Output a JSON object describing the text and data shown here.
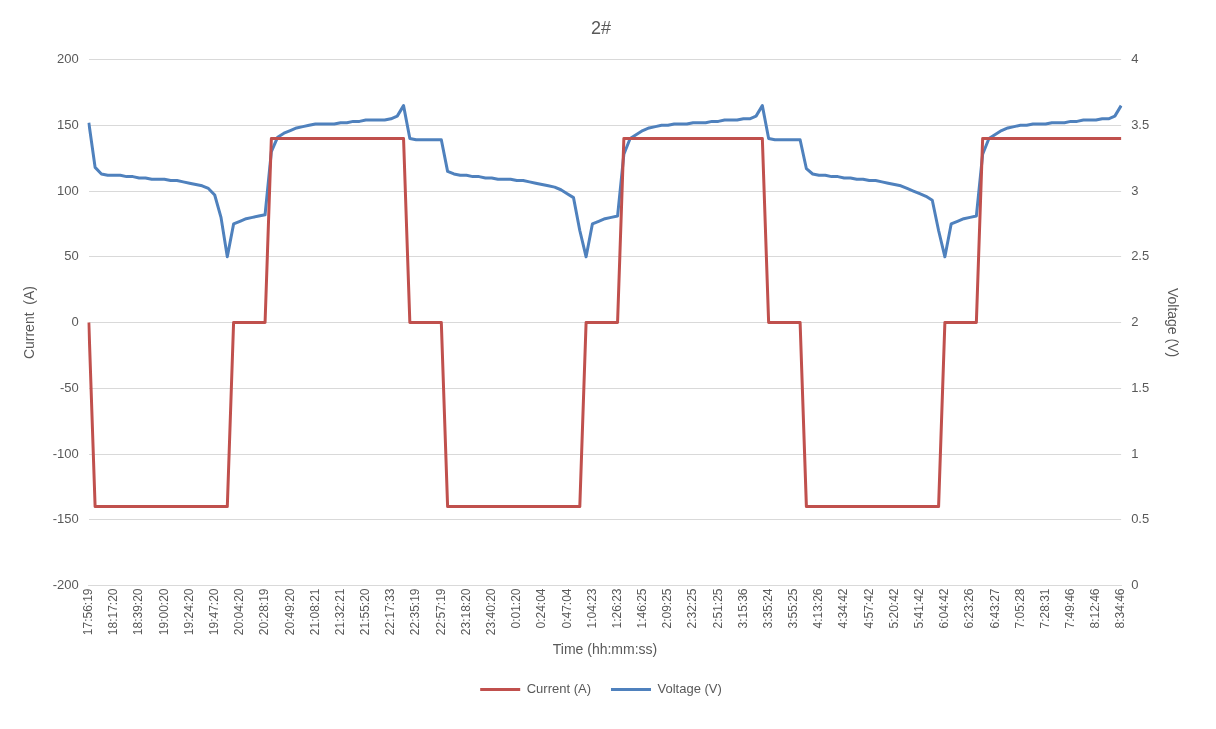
{
  "chart_data": {
    "type": "line",
    "title": "2#",
    "xlabel": "Time (hh:mm:ss)",
    "ylabel": "Current  (A)",
    "y2label": "Voltage (V)",
    "categories": [
      "17:56:19",
      null,
      null,
      null,
      "18:17:20",
      null,
      null,
      null,
      "18:39:20",
      null,
      null,
      null,
      "19:00:20",
      null,
      null,
      null,
      "19:24:20",
      null,
      null,
      null,
      "19:47:20",
      null,
      null,
      null,
      "20:04:20",
      null,
      null,
      null,
      "20:28:19",
      null,
      null,
      null,
      "20:49:20",
      null,
      null,
      null,
      "21:08:21",
      null,
      null,
      null,
      "21:32:21",
      null,
      null,
      null,
      "21:55:20",
      null,
      null,
      null,
      "22:17:33",
      null,
      null,
      null,
      "22:35:19",
      null,
      null,
      null,
      "22:57:19",
      null,
      null,
      null,
      "23:18:20",
      null,
      null,
      null,
      "23:40:20",
      null,
      null,
      null,
      "0:01:20",
      null,
      null,
      null,
      "0:24:04",
      null,
      null,
      null,
      "0:47:04",
      null,
      null,
      null,
      "1:04:23",
      null,
      null,
      null,
      "1:26:23",
      null,
      null,
      null,
      "1:46:25",
      null,
      null,
      null,
      "2:09:25",
      null,
      null,
      null,
      "2:32:25",
      null,
      null,
      null,
      "2:51:25",
      null,
      null,
      null,
      "3:15:36",
      null,
      null,
      null,
      "3:35:24",
      null,
      null,
      null,
      "3:55:25",
      null,
      null,
      null,
      "4:13:26",
      null,
      null,
      null,
      "4:34:42",
      null,
      null,
      null,
      "4:57:42",
      null,
      null,
      null,
      "5:20:42",
      null,
      null,
      null,
      "5:41:42",
      null,
      null,
      null,
      "6:04:42",
      null,
      null,
      null,
      "6:23:26",
      null,
      null,
      null,
      "6:43:27",
      null,
      null,
      null,
      "7:05:28",
      null,
      null,
      null,
      "7:28:31",
      null,
      null,
      null,
      "7:49:46",
      null,
      null,
      null,
      "8:12:46",
      null,
      null,
      null,
      "8:34:46"
    ],
    "series": [
      {
        "name": "Current (A)",
        "color": "#c0504d",
        "values": [
          0,
          -140,
          -140,
          -140,
          -140,
          -140,
          -140,
          -140,
          -140,
          -140,
          -140,
          -140,
          -140,
          -140,
          -140,
          -140,
          -140,
          -140,
          -140,
          -140,
          -140,
          -140,
          -140,
          0,
          0,
          0,
          0,
          0,
          0,
          140,
          140,
          140,
          140,
          140,
          140,
          140,
          140,
          140,
          140,
          140,
          140,
          140,
          140,
          140,
          140,
          140,
          140,
          140,
          140,
          140,
          140,
          0,
          0,
          0,
          0,
          0,
          0,
          -140,
          -140,
          -140,
          -140,
          -140,
          -140,
          -140,
          -140,
          -140,
          -140,
          -140,
          -140,
          -140,
          -140,
          -140,
          -140,
          -140,
          -140,
          -140,
          -140,
          -140,
          -140,
          0,
          0,
          0,
          0,
          0,
          0,
          140,
          140,
          140,
          140,
          140,
          140,
          140,
          140,
          140,
          140,
          140,
          140,
          140,
          140,
          140,
          140,
          140,
          140,
          140,
          140,
          140,
          140,
          140,
          0,
          0,
          0,
          0,
          0,
          0,
          -140,
          -140,
          -140,
          -140,
          -140,
          -140,
          -140,
          -140,
          -140,
          -140,
          -140,
          -140,
          -140,
          -140,
          -140,
          -140,
          -140,
          -140,
          -140,
          -140,
          -140,
          -140,
          0,
          0,
          0,
          0,
          0,
          0,
          140,
          140,
          140,
          140,
          140,
          140,
          140,
          140,
          140,
          140,
          140,
          140,
          140,
          140,
          140,
          140,
          140,
          140,
          140,
          140,
          140,
          140,
          140
        ]
      },
      {
        "name": "Voltage (V)",
        "color": "#4f81bd",
        "axis": "y2",
        "values": [
          3.52,
          3.18,
          3.13,
          3.12,
          3.12,
          3.12,
          3.11,
          3.11,
          3.1,
          3.1,
          3.09,
          3.09,
          3.09,
          3.08,
          3.08,
          3.07,
          3.06,
          3.05,
          3.04,
          3.02,
          2.97,
          2.8,
          2.5,
          2.75,
          2.77,
          2.79,
          2.8,
          2.81,
          2.82,
          3.3,
          3.41,
          3.44,
          3.46,
          3.48,
          3.49,
          3.5,
          3.51,
          3.51,
          3.51,
          3.51,
          3.52,
          3.52,
          3.53,
          3.53,
          3.54,
          3.54,
          3.54,
          3.54,
          3.55,
          3.57,
          3.65,
          3.4,
          3.39,
          3.39,
          3.39,
          3.39,
          3.39,
          3.15,
          3.13,
          3.12,
          3.12,
          3.11,
          3.11,
          3.1,
          3.1,
          3.09,
          3.09,
          3.09,
          3.08,
          3.08,
          3.07,
          3.06,
          3.05,
          3.04,
          3.03,
          3.01,
          2.98,
          2.95,
          2.7,
          2.5,
          2.75,
          2.77,
          2.79,
          2.8,
          2.81,
          3.28,
          3.4,
          3.43,
          3.46,
          3.48,
          3.49,
          3.5,
          3.5,
          3.51,
          3.51,
          3.51,
          3.52,
          3.52,
          3.52,
          3.53,
          3.53,
          3.54,
          3.54,
          3.54,
          3.55,
          3.55,
          3.57,
          3.65,
          3.4,
          3.39,
          3.39,
          3.39,
          3.39,
          3.39,
          3.17,
          3.13,
          3.12,
          3.12,
          3.11,
          3.11,
          3.1,
          3.1,
          3.09,
          3.09,
          3.08,
          3.08,
          3.07,
          3.06,
          3.05,
          3.04,
          3.02,
          3.0,
          2.98,
          2.96,
          2.93,
          2.7,
          2.5,
          2.75,
          2.77,
          2.79,
          2.8,
          2.81,
          3.28,
          3.4,
          3.43,
          3.46,
          3.48,
          3.49,
          3.5,
          3.5,
          3.51,
          3.51,
          3.51,
          3.52,
          3.52,
          3.52,
          3.53,
          3.53,
          3.54,
          3.54,
          3.54,
          3.55,
          3.55,
          3.57,
          3.65
        ]
      }
    ],
    "ylim": [
      -200,
      200
    ],
    "yticks": [
      -200,
      -150,
      -100,
      -50,
      0,
      50,
      100,
      150,
      200
    ],
    "y2lim": [
      0,
      4
    ],
    "y2ticks": [
      0,
      0.5,
      1,
      1.5,
      2,
      2.5,
      3,
      3.5,
      4
    ],
    "grid": "y",
    "legend": "bottom",
    "marker": "none",
    "line_style": "solid"
  }
}
